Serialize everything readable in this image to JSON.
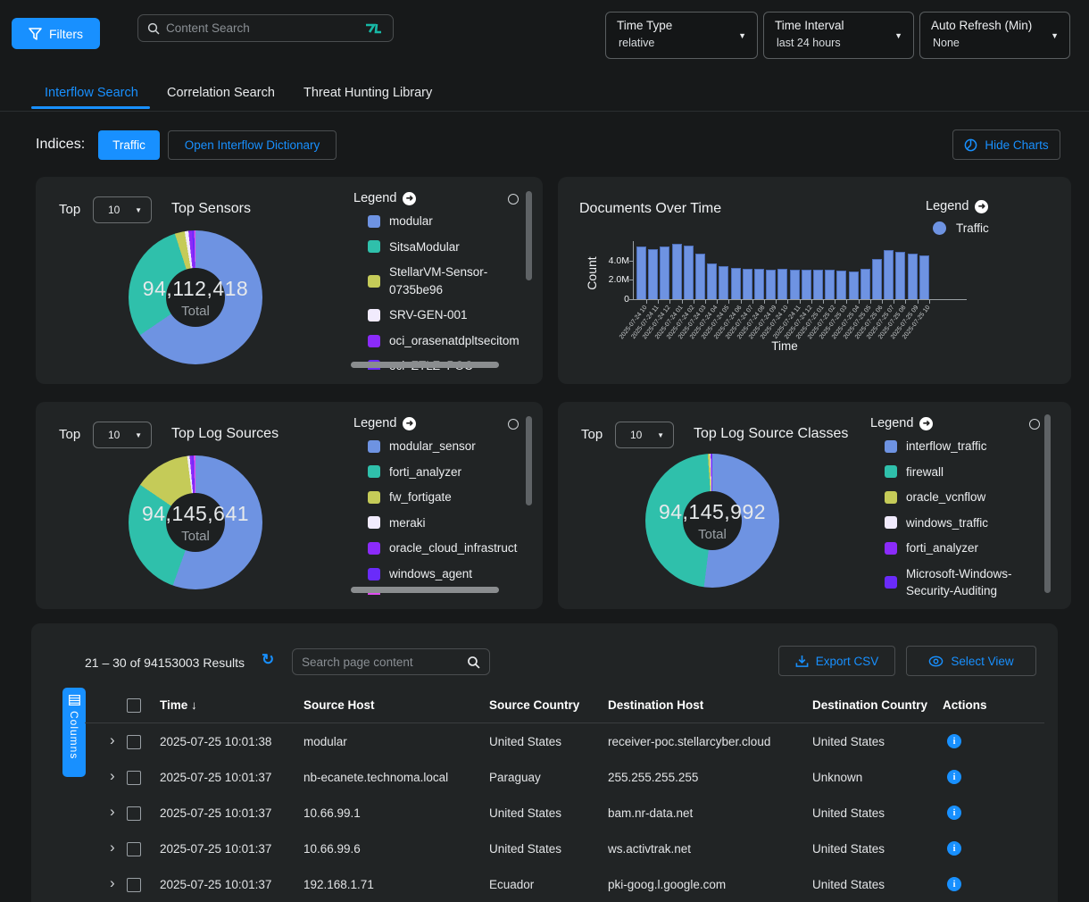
{
  "colors": {
    "accent": "#1890ff",
    "chart_blue": "#6e93e2",
    "chart_teal": "#2fc0ab",
    "chart_yellow": "#c5cb58",
    "chart_white": "#f1ebfd",
    "chart_purple": "#8b2bfa",
    "chart_violet": "#6a2bfa",
    "chart_magenta": "#e04cf0"
  },
  "header": {
    "filters_label": "Filters",
    "content_search_placeholder": "Content Search",
    "time_type": {
      "label": "Time Type",
      "value": "relative"
    },
    "time_interval": {
      "label": "Time Interval",
      "value": "last 24 hours"
    },
    "auto_refresh": {
      "label": "Auto Refresh (Min)",
      "value": "None"
    }
  },
  "tabs": [
    {
      "label": "Interflow Search",
      "active": true
    },
    {
      "label": "Correlation Search",
      "active": false
    },
    {
      "label": "Threat Hunting Library",
      "active": false
    }
  ],
  "indices": {
    "label": "Indices:",
    "traffic_button": "Traffic",
    "dictionary_button": "Open Interflow Dictionary",
    "hide_charts_button": "Hide Charts"
  },
  "chart_data": [
    {
      "type": "pie",
      "title": "Top Sensors",
      "top_label": "Top",
      "top_value": "10",
      "legend_title": "Legend",
      "total": "94,112,418",
      "total_label": "Total",
      "slices": [
        {
          "label": "modular",
          "color": "#6e93e2",
          "pct": 65.5
        },
        {
          "label": "SitsaModular",
          "color": "#2fc0ab",
          "pct": 29.5
        },
        {
          "label": "StellarVM-Sensor-0735be96",
          "color": "#c5cb58",
          "pct": 2.4
        },
        {
          "label": "SRV-GEN-001",
          "color": "#f1ebfd",
          "pct": 0.9
        },
        {
          "label": "oci_orasenatdpltsecitom",
          "color": "#8b2bfa",
          "pct": 0.9
        },
        {
          "label": "oci_ZTLZ_POC",
          "color": "#6a2bfa",
          "pct": 0.5
        },
        {
          "label": "",
          "color": "#e04cf0",
          "pct": 0.3
        }
      ]
    },
    {
      "type": "bar",
      "title": "Documents Over Time",
      "legend_title": "Legend",
      "series_name": "Traffic",
      "xlabel": "Time",
      "ylabel": "Count",
      "ylim": [
        0,
        6000000
      ],
      "yticks": [
        {
          "label": "4.0M",
          "value": 4000000
        },
        {
          "label": "2.0M",
          "value": 2000000
        },
        {
          "label": "0",
          "value": 0
        }
      ],
      "x": [
        "2025-07-24 10",
        "2025-07-24 11",
        "2025-07-24 12",
        "2025-07-24 01",
        "2025-07-24 02",
        "2025-07-24 03",
        "2025-07-24 04",
        "2025-07-24 05",
        "2025-07-24 06",
        "2025-07-24 07",
        "2025-07-24 08",
        "2025-07-24 09",
        "2025-07-24 10",
        "2025-07-24 11",
        "2025-07-24 12",
        "2025-07-25 01",
        "2025-07-25 02",
        "2025-07-25 03",
        "2025-07-25 04",
        "2025-07-25 05",
        "2025-07-25 06",
        "2025-07-25 07",
        "2025-07-25 08",
        "2025-07-25 09",
        "2025-07-25 10"
      ],
      "values": [
        5400000,
        5200000,
        5450000,
        5750000,
        5500000,
        4750000,
        3700000,
        3400000,
        3250000,
        3150000,
        3100000,
        3050000,
        3100000,
        3050000,
        3050000,
        3000000,
        3050000,
        2950000,
        2900000,
        3100000,
        4150000,
        5050000,
        4900000,
        4700000,
        4500000
      ]
    },
    {
      "type": "pie",
      "title": "Top Log Sources",
      "top_label": "Top",
      "top_value": "10",
      "legend_title": "Legend",
      "total": "94,145,641",
      "total_label": "Total",
      "slices": [
        {
          "label": "modular_sensor",
          "color": "#6e93e2",
          "pct": 55.5
        },
        {
          "label": "forti_analyzer",
          "color": "#2fc0ab",
          "pct": 29.0
        },
        {
          "label": "fw_fortigate",
          "color": "#c5cb58",
          "pct": 13.5
        },
        {
          "label": "meraki",
          "color": "#f1ebfd",
          "pct": 0.6
        },
        {
          "label": "oracle_cloud_infrastruct",
          "color": "#8b2bfa",
          "pct": 0.6
        },
        {
          "label": "windows_agent",
          "color": "#6a2bfa",
          "pct": 0.4
        },
        {
          "label": "",
          "color": "#e04cf0",
          "pct": 0.4
        }
      ]
    },
    {
      "type": "pie",
      "title": "Top Log Source Classes",
      "top_label": "Top",
      "top_value": "10",
      "legend_title": "Legend",
      "total": "94,145,992",
      "total_label": "Total",
      "slices": [
        {
          "label": "interflow_traffic",
          "color": "#6e93e2",
          "pct": 52.0
        },
        {
          "label": "firewall",
          "color": "#2fc0ab",
          "pct": 46.9
        },
        {
          "label": "oracle_vcnflow",
          "color": "#c5cb58",
          "pct": 0.5
        },
        {
          "label": "windows_traffic",
          "color": "#f1ebfd",
          "pct": 0.2
        },
        {
          "label": "forti_analyzer",
          "color": "#8b2bfa",
          "pct": 0.2
        },
        {
          "label": "Microsoft-Windows-Security-Auditing",
          "color": "#6a2bfa",
          "pct": 0.2
        }
      ]
    }
  ],
  "results": {
    "summary": "21 – 30 of 94153003 Results",
    "search_placeholder": "Search page content",
    "export_label": "Export CSV",
    "select_view_label": "Select View",
    "columns_button": "Columns",
    "sort_icon": "↓",
    "columns": [
      "Time",
      "Source Host",
      "Source Country",
      "Destination Host",
      "Destination Country",
      "Actions"
    ],
    "rows": [
      {
        "time": "2025-07-25 10:01:38",
        "src_host": "modular",
        "src_country": "United States",
        "dst_host": "receiver-poc.stellarcyber.cloud",
        "dst_country": "United States"
      },
      {
        "time": "2025-07-25 10:01:37",
        "src_host": "nb-ecanete.technoma.local",
        "src_country": "Paraguay",
        "dst_host": "255.255.255.255",
        "dst_country": "Unknown"
      },
      {
        "time": "2025-07-25 10:01:37",
        "src_host": "10.66.99.1",
        "src_country": "United States",
        "dst_host": "bam.nr-data.net",
        "dst_country": "United States"
      },
      {
        "time": "2025-07-25 10:01:37",
        "src_host": "10.66.99.6",
        "src_country": "United States",
        "dst_host": "ws.activtrak.net",
        "dst_country": "United States"
      },
      {
        "time": "2025-07-25 10:01:37",
        "src_host": "192.168.1.71",
        "src_country": "Ecuador",
        "dst_host": "pki-goog.l.google.com",
        "dst_country": "United States"
      }
    ]
  }
}
